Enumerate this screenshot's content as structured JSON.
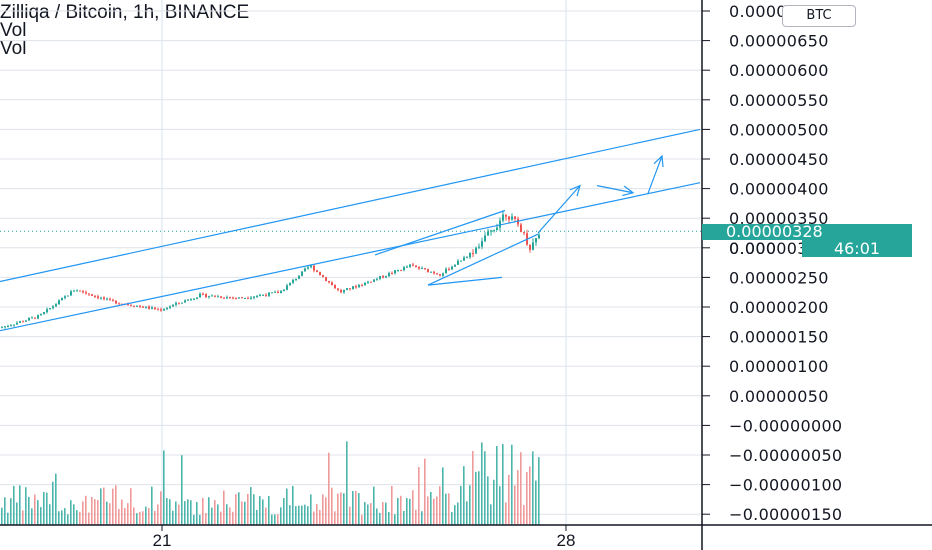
{
  "legend": {
    "title": "Zilliqa / Bitcoin, 1h, BINANCE",
    "study1": "Vol",
    "study2": "Vol"
  },
  "currency_badge": "BTC",
  "price_tag": "0.00000328",
  "countdown": "46:01",
  "countdown_price_prefix": "0.000",
  "colors": {
    "up": "#26a69a",
    "down": "#ef5350",
    "drawing": "#2196f3",
    "grid": "#e0e3eb",
    "axis_line": "#131722"
  },
  "chart_data": {
    "type": "candlestick",
    "symbol": "ZILBTC",
    "exchange": "BINANCE",
    "interval": "1h",
    "y_axis": {
      "labels": [
        "0.00000700",
        "0.00000650",
        "0.00000600",
        "0.00000550",
        "0.00000500",
        "0.00000450",
        "0.00000400",
        "0.00000350",
        "0.00000300",
        "0.00000250",
        "0.00000200",
        "0.00000150",
        "0.00000100",
        "0.00000050",
        "−0.00000000",
        "−0.00000050",
        "−0.00000100",
        "−0.00000150"
      ],
      "values": [
        7.0,
        6.5,
        6.0,
        5.5,
        5.0,
        4.5,
        4.0,
        3.5,
        3.0,
        2.5,
        2.0,
        1.5,
        1.0,
        0.5,
        0.0,
        -0.5,
        -1.0,
        -1.5
      ],
      "unit_note": "values in units of 1e-6 BTC"
    },
    "x_axis": {
      "labels": [
        "21",
        "28"
      ]
    },
    "last_price": 3.28,
    "price_path": [
      [
        0,
        1.65
      ],
      [
        40,
        1.85
      ],
      [
        75,
        2.3
      ],
      [
        110,
        2.1
      ],
      [
        160,
        1.95
      ],
      [
        200,
        2.2
      ],
      [
        240,
        2.15
      ],
      [
        280,
        2.25
      ],
      [
        310,
        2.7
      ],
      [
        340,
        2.25
      ],
      [
        380,
        2.5
      ],
      [
        410,
        2.7
      ],
      [
        440,
        2.55
      ],
      [
        470,
        2.9
      ],
      [
        495,
        3.35
      ],
      [
        505,
        3.6
      ],
      [
        520,
        3.35
      ],
      [
        530,
        3.0
      ],
      [
        540,
        3.28
      ]
    ],
    "drawings": [
      {
        "type": "trend_line",
        "label": "channel-upper",
        "from": [
          0,
          2.43
        ],
        "to": [
          700,
          5.0
        ]
      },
      {
        "type": "trend_line",
        "label": "channel-lower",
        "from": [
          0,
          1.6
        ],
        "to": [
          700,
          4.1
        ]
      },
      {
        "type": "trend_line",
        "label": "inner-upper",
        "from": [
          375,
          2.88
        ],
        "to": [
          505,
          3.63
        ]
      },
      {
        "type": "trend_line",
        "label": "inner-lower",
        "from": [
          428,
          2.37
        ],
        "to": [
          538,
          3.23
        ]
      },
      {
        "type": "trend_line",
        "label": "support-extension",
        "from": [
          428,
          2.37
        ],
        "to": [
          502,
          2.5
        ]
      },
      {
        "type": "arrow",
        "label": "projection-1",
        "from": [
          538,
          3.25
        ],
        "to": [
          580,
          4.05
        ]
      },
      {
        "type": "arrow",
        "label": "projection-2",
        "from": [
          597,
          4.05
        ],
        "to": [
          633,
          3.93
        ]
      },
      {
        "type": "arrow",
        "label": "projection-3",
        "from": [
          648,
          3.92
        ],
        "to": [
          662,
          4.55
        ]
      }
    ]
  }
}
